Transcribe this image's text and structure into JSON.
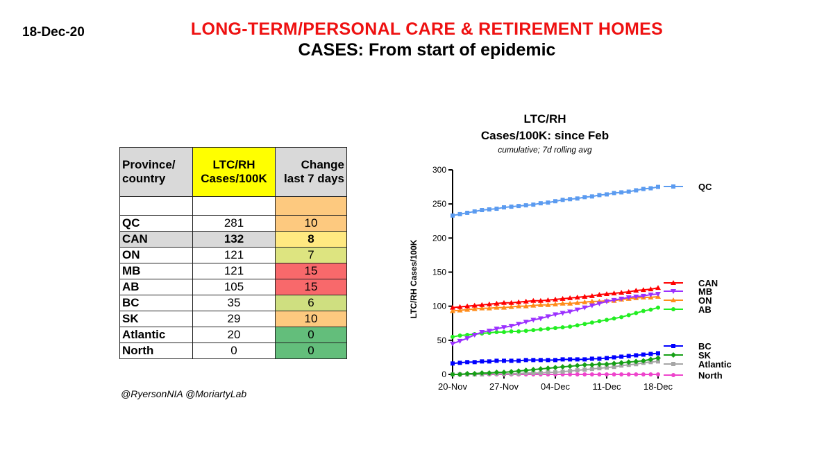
{
  "header": {
    "date": "18-Dec-20",
    "title": "LONG-TERM/PERSONAL  CARE & RETIREMENT  HOMES",
    "subtitle": "CASES: From start of epidemic"
  },
  "table": {
    "headers": {
      "col1": [
        "Province/",
        "country"
      ],
      "col2": [
        "LTC/RH",
        "Cases/100K"
      ],
      "col3": [
        "Change",
        "last 7 days"
      ]
    },
    "rows": [
      {
        "province": "QC",
        "cases": "281",
        "change": "10",
        "color": "#fdc97f"
      },
      {
        "province": "CAN",
        "cases": "132",
        "change": "8",
        "color": "#ffe981"
      },
      {
        "province": "ON",
        "cases": "121",
        "change": "7",
        "color": "#dde480"
      },
      {
        "province": "MB",
        "cases": "121",
        "change": "15",
        "color": "#f8696b"
      },
      {
        "province": "AB",
        "cases": "105",
        "change": "15",
        "color": "#f8696b"
      },
      {
        "province": "BC",
        "cases": "35",
        "change": "6",
        "color": "#cfdf80"
      },
      {
        "province": "SK",
        "cases": "29",
        "change": "10",
        "color": "#fdc97f"
      },
      {
        "province": "Atlantic",
        "cases": "20",
        "change": "0",
        "color": "#63be7b"
      },
      {
        "province": "North",
        "cases": "0",
        "change": "0",
        "color": "#63be7b"
      }
    ]
  },
  "credit": "@RyersonNIA @MoriartyLab",
  "chart_data": {
    "type": "line",
    "title": "LTC/RH",
    "subtitle": "Cases/100K: since Feb",
    "note": "cumulative; 7d rolling avg",
    "ylabel": "LTC/RH Cases/100K",
    "ylim": [
      0,
      300
    ],
    "yticks": [
      0,
      50,
      100,
      150,
      200,
      250,
      300
    ],
    "xlim": [
      0,
      28
    ],
    "xticks": [
      {
        "pos": 0,
        "label": "20-Nov"
      },
      {
        "pos": 7,
        "label": "27-Nov"
      },
      {
        "pos": 14,
        "label": "04-Dec"
      },
      {
        "pos": 21,
        "label": "11-Dec"
      },
      {
        "pos": 28,
        "label": "18-Dec"
      }
    ],
    "series": [
      {
        "name": "QC",
        "color": "#5b9bf0",
        "marker": "square",
        "values": [
          233,
          235,
          237,
          239,
          241,
          242,
          243,
          245,
          246,
          247,
          248,
          249,
          251,
          252,
          254,
          256,
          257,
          258,
          260,
          261,
          263,
          264,
          266,
          267,
          268,
          270,
          272,
          273,
          275
        ]
      },
      {
        "name": "CAN",
        "color": "#ff0000",
        "marker": "triangle-up",
        "values": [
          98,
          99,
          100,
          101,
          102,
          103,
          104,
          105,
          105,
          106,
          107,
          108,
          108,
          109,
          110,
          111,
          112,
          113,
          114,
          115,
          117,
          118,
          119,
          120,
          121,
          123,
          124,
          125,
          127
        ]
      },
      {
        "name": "MB",
        "color": "#9b30ff",
        "marker": "triangle-down",
        "values": [
          45,
          49,
          53,
          58,
          62,
          64,
          67,
          69,
          71,
          74,
          77,
          80,
          82,
          85,
          88,
          90,
          92,
          95,
          98,
          101,
          104,
          107,
          109,
          111,
          113,
          114,
          115,
          117,
          118
        ]
      },
      {
        "name": "ON",
        "color": "#ff8c1a",
        "marker": "triangle-up",
        "values": [
          93,
          94,
          95,
          96,
          97,
          97,
          98,
          98,
          99,
          100,
          100,
          101,
          102,
          102,
          103,
          104,
          104,
          105,
          106,
          107,
          107,
          108,
          108,
          110,
          111,
          112,
          113,
          113,
          114
        ]
      },
      {
        "name": "AB",
        "color": "#22ee22",
        "marker": "circle",
        "values": [
          55,
          57,
          58,
          59,
          60,
          61,
          62,
          62,
          63,
          63,
          64,
          65,
          66,
          67,
          68,
          69,
          70,
          72,
          74,
          76,
          78,
          80,
          82,
          84,
          87,
          90,
          93,
          95,
          98
        ]
      },
      {
        "name": "BC",
        "color": "#0000ff",
        "marker": "square",
        "values": [
          16,
          17,
          18,
          18,
          19,
          19,
          20,
          20,
          20,
          20,
          21,
          21,
          21,
          21,
          21,
          22,
          22,
          22,
          22,
          23,
          23,
          24,
          25,
          26,
          27,
          28,
          29,
          30,
          31
        ]
      },
      {
        "name": "SK",
        "color": "#16a016",
        "marker": "diamond",
        "values": [
          0,
          0,
          1,
          1,
          2,
          2,
          3,
          3,
          4,
          5,
          6,
          7,
          8,
          9,
          10,
          11,
          12,
          13,
          14,
          14,
          15,
          15,
          16,
          17,
          18,
          19,
          20,
          22,
          24
        ]
      },
      {
        "name": "Atlantic",
        "color": "#a6a6a6",
        "marker": "square",
        "values": [
          0,
          0,
          0,
          0,
          0,
          1,
          1,
          1,
          1,
          1,
          2,
          2,
          2,
          3,
          3,
          4,
          5,
          6,
          7,
          8,
          9,
          10,
          11,
          13,
          14,
          15,
          17,
          18,
          19
        ]
      },
      {
        "name": "North",
        "color": "#ee44cc",
        "marker": "circle",
        "values": [
          0,
          0,
          0,
          0,
          0,
          0,
          0,
          0,
          0,
          0,
          0,
          0,
          0,
          0,
          0,
          0,
          0,
          0,
          0,
          0,
          0,
          0,
          0,
          0,
          0,
          0,
          0,
          0,
          0
        ]
      }
    ],
    "legend_placement": "right, at line ends",
    "grid": false
  }
}
